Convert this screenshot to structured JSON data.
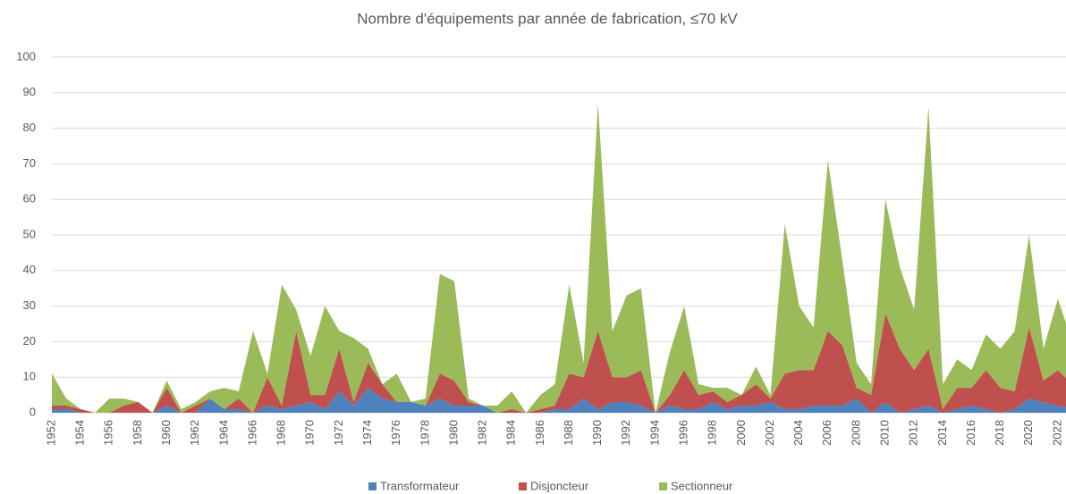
{
  "chart_data": {
    "type": "area",
    "stacked": true,
    "title": "Nombre d'équipements par année de fabrication, ≤70 kV",
    "categories": [
      "1952",
      null,
      "1954",
      null,
      "1956",
      null,
      "1958",
      null,
      "1960",
      null,
      "1962",
      null,
      "1964",
      null,
      "1966",
      null,
      "1968",
      null,
      "1970",
      null,
      "1972",
      null,
      "1974",
      null,
      "1976",
      null,
      "1978",
      null,
      "1980",
      null,
      "1982",
      null,
      "1984",
      null,
      "1986",
      null,
      "1988",
      null,
      "1990",
      null,
      "1992",
      null,
      "1994",
      null,
      "1996",
      null,
      "1998",
      null,
      "2000",
      null,
      "2002",
      null,
      "2004",
      null,
      "2006",
      null,
      "2008",
      null,
      "2010",
      null,
      "2012",
      null,
      "2014",
      null,
      "2016",
      null,
      "2018",
      null,
      "2020",
      null,
      "2022",
      null
    ],
    "series": [
      {
        "name": "Transformateur",
        "color": "#4f81bd",
        "values": [
          1,
          1,
          0,
          0,
          0,
          0,
          0,
          0,
          2,
          0,
          0,
          4,
          1,
          1,
          0,
          2,
          1,
          2,
          3,
          1,
          6,
          2,
          7,
          4,
          3,
          3,
          2,
          4,
          2,
          2,
          2,
          0,
          0,
          0,
          0,
          1,
          1,
          4,
          1,
          3,
          3,
          2,
          0,
          2,
          1,
          1,
          3,
          1,
          2,
          2,
          3,
          1,
          1,
          2,
          2,
          2,
          4,
          0,
          3,
          0,
          1,
          2,
          0,
          1,
          2,
          1,
          0,
          1,
          4,
          3,
          2,
          1
        ]
      },
      {
        "name": "Disjoncteur",
        "color": "#c0504d",
        "values": [
          1,
          1,
          1,
          0,
          0,
          2,
          3,
          0,
          5,
          0,
          2,
          0,
          0,
          3,
          0,
          8,
          1,
          21,
          2,
          4,
          12,
          1,
          7,
          4,
          0,
          0,
          0,
          7,
          7,
          1,
          0,
          0,
          1,
          0,
          1,
          1,
          10,
          6,
          22,
          7,
          7,
          10,
          0,
          3,
          11,
          4,
          3,
          2,
          3,
          6,
          1,
          10,
          11,
          10,
          21,
          17,
          3,
          5,
          25,
          18,
          11,
          16,
          1,
          6,
          5,
          11,
          7,
          5,
          20,
          6,
          10,
          7
        ]
      },
      {
        "name": "Sectionneur",
        "color": "#9bbb59",
        "values": [
          9,
          2,
          0,
          0,
          4,
          2,
          0,
          0,
          2,
          1,
          1,
          2,
          6,
          2,
          23,
          1,
          34,
          6,
          11,
          25,
          5,
          18,
          4,
          0,
          8,
          0,
          2,
          28,
          28,
          1,
          0,
          2,
          5,
          0,
          4,
          6,
          25,
          4,
          64,
          13,
          23,
          23,
          0,
          12,
          18,
          3,
          1,
          4,
          0,
          5,
          1,
          42,
          18,
          12,
          48,
          24,
          7,
          3,
          32,
          23,
          17,
          68,
          7,
          8,
          5,
          10,
          11,
          17,
          26,
          9,
          20,
          12
        ]
      }
    ],
    "ylim": [
      0,
      100
    ],
    "yticks": [
      0,
      10,
      20,
      30,
      40,
      50,
      60,
      70,
      80,
      90,
      100
    ],
    "grid": true,
    "legend": "bottom"
  }
}
